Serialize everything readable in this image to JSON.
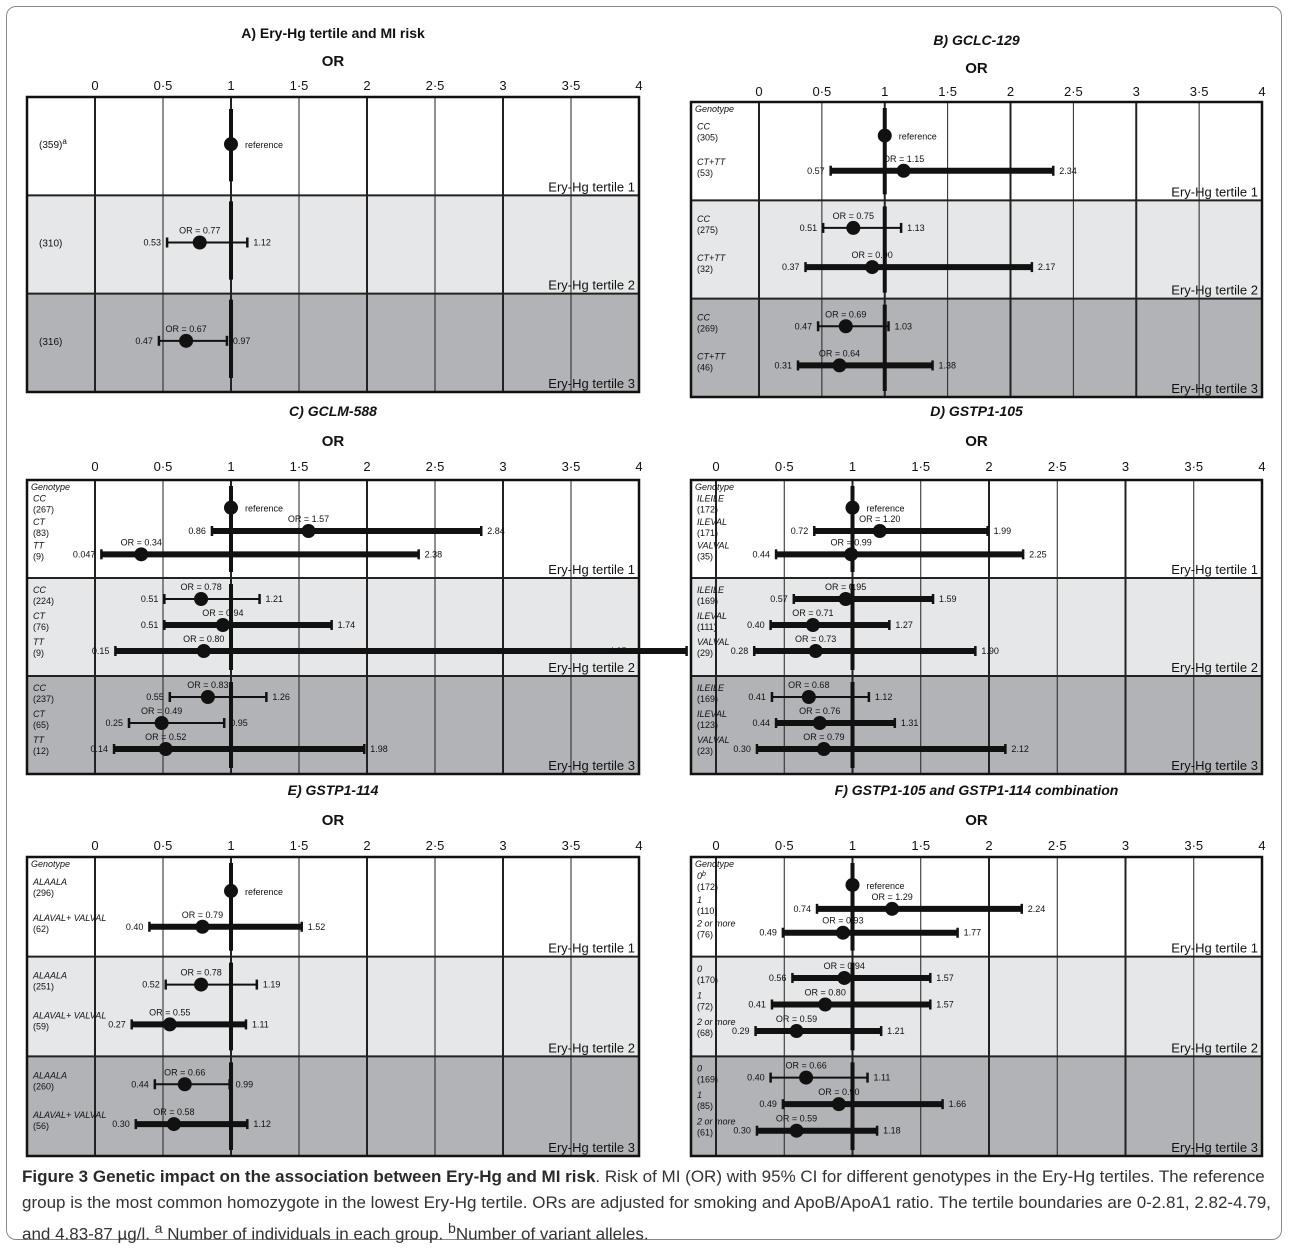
{
  "figure_caption": {
    "title": "Figure 3 Genetic impact on the association between Ery-Hg and MI risk",
    "body": ". Risk of MI (OR) with 95% CI for different genotypes in the Ery-Hg tertiles. The reference group is the most common homozygote in the lowest Ery-Hg tertile. ORs are adjusted for smoking and ApoB/ApoA1 ratio. The tertile boundaries are 0-2.81, 2.82-4.79, and 4.83-87 µg/l. ",
    "note_a": "a",
    "note_a_text": " Number of individuals in each group. ",
    "note_b": "b",
    "note_b_text": "Number of variant alleles."
  },
  "colors": {
    "tertile1": "#ffffff",
    "tertile2": "#e6e7e8",
    "tertile3": "#b1b3b6",
    "ink": "#111111"
  },
  "chart_data": [
    {
      "type": "forest",
      "panel": "A",
      "title": "A) Ery-Hg tertile and MI risk",
      "title_italic": false,
      "axis_label": "OR",
      "xlim": [
        0,
        4
      ],
      "x_ticks": [
        "0",
        "0·5",
        "1",
        "1·5",
        "2",
        "2·5",
        "3",
        "3·5",
        "4"
      ],
      "genotype_header": "",
      "tertile_labels": [
        "Ery-Hg tertile 1",
        "Ery-Hg tertile 2",
        "Ery-Hg tertile 3"
      ],
      "tertiles": [
        [
          {
            "genotype": "",
            "n": "(359)",
            "n_sup": "a",
            "or": 1,
            "lo": null,
            "hi": null,
            "reference": true,
            "reference_label": "reference",
            "or_label": ""
          }
        ],
        [
          {
            "genotype": "",
            "n": "(310)",
            "n_sup": "",
            "or": 0.77,
            "lo": 0.53,
            "hi": 1.12,
            "reference": false,
            "or_label": "OR = 0.77",
            "lo_label": "0.53",
            "hi_label": "1.12"
          }
        ],
        [
          {
            "genotype": "",
            "n": "(316)",
            "n_sup": "",
            "or": 0.67,
            "lo": 0.47,
            "hi": 0.97,
            "reference": false,
            "or_label": "OR = 0.67",
            "lo_label": "0.47",
            "hi_label": "0.97"
          }
        ]
      ]
    },
    {
      "type": "forest",
      "panel": "B",
      "title": "B) GCLC-129",
      "title_italic": true,
      "axis_label": "OR",
      "xlim": [
        0,
        4
      ],
      "x_ticks": [
        "0",
        "0·5",
        "1",
        "1·5",
        "2",
        "2·5",
        "3",
        "3·5",
        "4"
      ],
      "genotype_header": "Genotype",
      "tertile_labels": [
        "Ery-Hg tertile 1",
        "Ery-Hg tertile 2",
        "Ery-Hg tertile 3"
      ],
      "tertiles": [
        [
          {
            "genotype": "CC",
            "n": "(305)",
            "n_sup": "",
            "or": 1,
            "lo": null,
            "hi": null,
            "reference": true,
            "reference_label": "reference",
            "or_label": ""
          },
          {
            "genotype": "CT+TT",
            "n": "(53)",
            "n_sup": "",
            "or": 1.15,
            "lo": 0.57,
            "hi": 2.34,
            "reference": false,
            "or_label": "OR = 1.15",
            "lo_label": "0.57",
            "hi_label": "2.34"
          }
        ],
        [
          {
            "genotype": "CC",
            "n": "(275)",
            "n_sup": "",
            "or": 0.75,
            "lo": 0.51,
            "hi": 1.13,
            "reference": false,
            "or_label": "OR = 0.75",
            "lo_label": "0.51",
            "hi_label": "1.13"
          },
          {
            "genotype": "CT+TT",
            "n": "(32)",
            "n_sup": "",
            "or": 0.9,
            "lo": 0.37,
            "hi": 2.17,
            "reference": false,
            "or_label": "OR = 0.90",
            "lo_label": "0.37",
            "hi_label": "2.17"
          }
        ],
        [
          {
            "genotype": "CC",
            "n": "(269)",
            "n_sup": "",
            "or": 0.69,
            "lo": 0.47,
            "hi": 1.03,
            "reference": false,
            "or_label": "OR = 0.69",
            "lo_label": "0.47",
            "hi_label": "1.03"
          },
          {
            "genotype": "CT+TT",
            "n": "(46)",
            "n_sup": "",
            "or": 0.64,
            "lo": 0.31,
            "hi": 1.38,
            "reference": false,
            "or_label": "OR = 0.64",
            "lo_label": "0.31",
            "hi_label": "1.38"
          }
        ]
      ]
    },
    {
      "type": "forest",
      "panel": "C",
      "title": "C) GCLM-588",
      "title_italic": true,
      "axis_label": "OR",
      "xlim": [
        0,
        4
      ],
      "x_ticks": [
        "0",
        "0·5",
        "1",
        "1·5",
        "2",
        "2·5",
        "3",
        "3·5",
        "4"
      ],
      "genotype_header": "Genotype",
      "tertile_labels": [
        "Ery-Hg tertile 1",
        "Ery-Hg tertile 2",
        "Ery-Hg tertile 3"
      ],
      "tertiles": [
        [
          {
            "genotype": "CC",
            "n": "(267)",
            "n_sup": "",
            "or": 1,
            "lo": null,
            "hi": null,
            "reference": true,
            "reference_label": "reference",
            "or_label": ""
          },
          {
            "genotype": "CT",
            "n": "(83)",
            "n_sup": "",
            "or": 1.57,
            "lo": 0.86,
            "hi": 2.84,
            "reference": false,
            "or_label": "OR = 1.57",
            "lo_label": "0.86",
            "hi_label": "2.84"
          },
          {
            "genotype": "TT",
            "n": "(9)",
            "n_sup": "",
            "or": 0.34,
            "lo": 0.047,
            "hi": 2.38,
            "reference": false,
            "or_label": "OR = 0.34",
            "lo_label": "0.047",
            "hi_label": "2.38"
          }
        ],
        [
          {
            "genotype": "CC",
            "n": "(224)",
            "n_sup": "",
            "or": 0.78,
            "lo": 0.51,
            "hi": 1.21,
            "reference": false,
            "or_label": "OR = 0.78",
            "lo_label": "0.51",
            "hi_label": "1.21"
          },
          {
            "genotype": "CT",
            "n": "(76)",
            "n_sup": "",
            "or": 0.94,
            "lo": 0.51,
            "hi": 1.74,
            "reference": false,
            "or_label": "OR = 0.94",
            "lo_label": "0.51",
            "hi_label": "1.74"
          },
          {
            "genotype": "TT",
            "n": "(9)",
            "n_sup": "",
            "or": 0.8,
            "lo": 0.15,
            "hi": 4.35,
            "reference": false,
            "or_label": "OR = 0.80",
            "lo_label": "0.15",
            "hi_label": "4.35"
          }
        ],
        [
          {
            "genotype": "CC",
            "n": "(237)",
            "n_sup": "",
            "or": 0.83,
            "lo": 0.55,
            "hi": 1.26,
            "reference": false,
            "or_label": "OR = 0.83",
            "lo_label": "0.55",
            "hi_label": "1.26"
          },
          {
            "genotype": "CT",
            "n": "(65)",
            "n_sup": "",
            "or": 0.49,
            "lo": 0.25,
            "hi": 0.95,
            "reference": false,
            "or_label": "OR = 0.49",
            "lo_label": "0.25",
            "hi_label": "0.95"
          },
          {
            "genotype": "TT",
            "n": "(12)",
            "n_sup": "",
            "or": 0.52,
            "lo": 0.14,
            "hi": 1.98,
            "reference": false,
            "or_label": "OR = 0.52",
            "lo_label": "0.14",
            "hi_label": "1.98"
          }
        ]
      ]
    },
    {
      "type": "forest",
      "panel": "D",
      "title": "D) GSTP1-105",
      "title_italic": true,
      "axis_label": "OR",
      "xlim": [
        0,
        4
      ],
      "x_ticks": [
        "0",
        "0·5",
        "1",
        "1·5",
        "2",
        "2·5",
        "3",
        "3·5",
        "4"
      ],
      "genotype_header": "Genotype",
      "tertile_labels": [
        "Ery-Hg tertile 1",
        "Ery-Hg tertile 2",
        "Ery-Hg tertile 3"
      ],
      "tertiles": [
        [
          {
            "genotype": "ILEILE",
            "n": "(172)",
            "n_sup": "",
            "or": 1,
            "lo": null,
            "hi": null,
            "reference": true,
            "reference_label": "reference",
            "or_label": ""
          },
          {
            "genotype": "ILEVAL",
            "n": "(171)",
            "n_sup": "",
            "or": 1.2,
            "lo": 0.72,
            "hi": 1.99,
            "reference": false,
            "or_label": "OR = 1.20",
            "lo_label": "0.72",
            "hi_label": "1.99"
          },
          {
            "genotype": "VALVAL",
            "n": "(35)",
            "n_sup": "",
            "or": 0.99,
            "lo": 0.44,
            "hi": 2.25,
            "reference": false,
            "or_label": "OR = 0.99",
            "lo_label": "0.44",
            "hi_label": "2.25"
          }
        ],
        [
          {
            "genotype": "ILEILE",
            "n": "(169)",
            "n_sup": "",
            "or": 0.95,
            "lo": 0.57,
            "hi": 1.59,
            "reference": false,
            "or_label": "OR = 0.95",
            "lo_label": "0.57",
            "hi_label": "1.59"
          },
          {
            "genotype": "ILEVAL",
            "n": "(111)",
            "n_sup": "",
            "or": 0.71,
            "lo": 0.4,
            "hi": 1.27,
            "reference": false,
            "or_label": "OR = 0.71",
            "lo_label": "0.40",
            "hi_label": "1.27"
          },
          {
            "genotype": "VALVAL",
            "n": "(29)",
            "n_sup": "",
            "or": 0.73,
            "lo": 0.28,
            "hi": 1.9,
            "reference": false,
            "or_label": "OR = 0.73",
            "lo_label": "0.28",
            "hi_label": "1.90"
          }
        ],
        [
          {
            "genotype": "ILEILE",
            "n": "(169)",
            "n_sup": "",
            "or": 0.68,
            "lo": 0.41,
            "hi": 1.12,
            "reference": false,
            "or_label": "OR = 0.68",
            "lo_label": "0.41",
            "hi_label": "1.12"
          },
          {
            "genotype": "ILEVAL",
            "n": "(123)",
            "n_sup": "",
            "or": 0.76,
            "lo": 0.44,
            "hi": 1.31,
            "reference": false,
            "or_label": "OR = 0.76",
            "lo_label": "0.44",
            "hi_label": "1.31"
          },
          {
            "genotype": "VALVAL",
            "n": "(23)",
            "n_sup": "",
            "or": 0.79,
            "lo": 0.3,
            "hi": 2.12,
            "reference": false,
            "or_label": "OR = 0.79",
            "lo_label": "0.30",
            "hi_label": "2.12"
          }
        ]
      ]
    },
    {
      "type": "forest",
      "panel": "E",
      "title": "E) GSTP1-114",
      "title_italic": true,
      "axis_label": "OR",
      "xlim": [
        0,
        4
      ],
      "x_ticks": [
        "0",
        "0·5",
        "1",
        "1·5",
        "2",
        "2·5",
        "3",
        "3·5",
        "4"
      ],
      "genotype_header": "Genotype",
      "tertile_labels": [
        "Ery-Hg tertile 1",
        "Ery-Hg tertile 2",
        "Ery-Hg tertile 3"
      ],
      "tertiles": [
        [
          {
            "genotype": "ALAALA",
            "n": "(296)",
            "n_sup": "",
            "or": 1,
            "lo": null,
            "hi": null,
            "reference": true,
            "reference_label": "reference",
            "or_label": ""
          },
          {
            "genotype": "ALAVAL+ VALVAL",
            "n": "(62)",
            "n_sup": "",
            "or": 0.79,
            "lo": 0.4,
            "hi": 1.52,
            "reference": false,
            "or_label": "OR = 0.79",
            "lo_label": "0.40",
            "hi_label": "1.52"
          }
        ],
        [
          {
            "genotype": "ALAALA",
            "n": "(251)",
            "n_sup": "",
            "or": 0.78,
            "lo": 0.52,
            "hi": 1.19,
            "reference": false,
            "or_label": "OR = 0.78",
            "lo_label": "0.52",
            "hi_label": "1.19"
          },
          {
            "genotype": "ALAVAL+ VALVAL",
            "n": "(59)",
            "n_sup": "",
            "or": 0.55,
            "lo": 0.27,
            "hi": 1.11,
            "reference": false,
            "or_label": "OR = 0.55",
            "lo_label": "0.27",
            "hi_label": "1.11"
          }
        ],
        [
          {
            "genotype": "ALAALA",
            "n": "(260)",
            "n_sup": "",
            "or": 0.66,
            "lo": 0.44,
            "hi": 0.99,
            "reference": false,
            "or_label": "OR = 0.66",
            "lo_label": "0.44",
            "hi_label": "0.99"
          },
          {
            "genotype": "ALAVAL+ VALVAL",
            "n": "(56)",
            "n_sup": "",
            "or": 0.58,
            "lo": 0.3,
            "hi": 1.12,
            "reference": false,
            "or_label": "OR = 0.58",
            "lo_label": "0.30",
            "hi_label": "1.12"
          }
        ]
      ]
    },
    {
      "type": "forest",
      "panel": "F",
      "title": "F) GSTP1-105 and GSTP1-114 combination",
      "title_italic": true,
      "axis_label": "OR",
      "xlim": [
        0,
        4
      ],
      "x_ticks": [
        "0",
        "0·5",
        "1",
        "1·5",
        "2",
        "2·5",
        "3",
        "3·5",
        "4"
      ],
      "genotype_header": "Genotype",
      "tertile_labels": [
        "Ery-Hg tertile 1",
        "Ery-Hg tertile 2",
        "Ery-Hg tertile 3"
      ],
      "tertiles": [
        [
          {
            "genotype": "0",
            "genotype_sup": "b",
            "n": "(172)",
            "n_sup": "",
            "or": 1,
            "lo": null,
            "hi": null,
            "reference": true,
            "reference_label": "reference",
            "or_label": ""
          },
          {
            "genotype": "1",
            "n": "(110)",
            "n_sup": "",
            "or": 1.29,
            "lo": 0.74,
            "hi": 2.24,
            "reference": false,
            "or_label": "OR = 1.29",
            "lo_label": "0.74",
            "hi_label": "2.24"
          },
          {
            "genotype": "2 or more",
            "n": "(76)",
            "n_sup": "",
            "or": 0.93,
            "lo": 0.49,
            "hi": 1.77,
            "reference": false,
            "or_label": "OR = 0.93",
            "lo_label": "0.49",
            "hi_label": "1.77"
          }
        ],
        [
          {
            "genotype": "0",
            "n": "(170)",
            "n_sup": "",
            "or": 0.94,
            "lo": 0.56,
            "hi": 1.57,
            "reference": false,
            "or_label": "OR = 0.94",
            "lo_label": "0.56",
            "hi_label": "1.57"
          },
          {
            "genotype": "1",
            "n": "(72)",
            "n_sup": "",
            "or": 0.8,
            "lo": 0.41,
            "hi": 1.57,
            "reference": false,
            "or_label": "OR = 0.80",
            "lo_label": "0.41",
            "hi_label": "1.57"
          },
          {
            "genotype": "2 or more",
            "n": "(68)",
            "n_sup": "",
            "or": 0.59,
            "lo": 0.29,
            "hi": 1.21,
            "reference": false,
            "or_label": "OR = 0.59",
            "lo_label": "0.29",
            "hi_label": "1.21"
          }
        ],
        [
          {
            "genotype": "0",
            "n": "(169)",
            "n_sup": "",
            "or": 0.66,
            "lo": 0.4,
            "hi": 1.11,
            "reference": false,
            "or_label": "OR = 0.66",
            "lo_label": "0.40",
            "hi_label": "1.11"
          },
          {
            "genotype": "1",
            "n": "(85)",
            "n_sup": "",
            "or": 0.9,
            "lo": 0.49,
            "hi": 1.66,
            "reference": false,
            "or_label": "OR = 0.90",
            "lo_label": "0.49",
            "hi_label": "1.66"
          },
          {
            "genotype": "2 or more",
            "n": "(61)",
            "n_sup": "",
            "or": 0.59,
            "lo": 0.3,
            "hi": 1.18,
            "reference": false,
            "or_label": "OR = 0.59",
            "lo_label": "0.30",
            "hi_label": "1.18"
          }
        ]
      ]
    }
  ]
}
